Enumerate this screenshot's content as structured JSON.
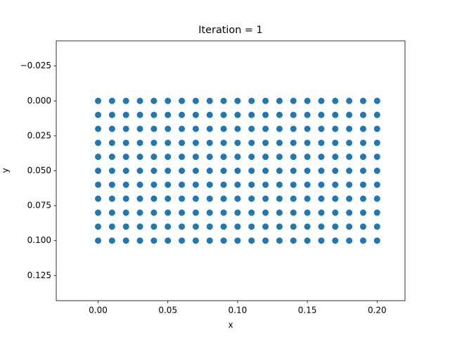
{
  "chart_data": {
    "type": "scatter",
    "title": "Iteration = 1",
    "x_label": "x",
    "y_label": "y",
    "color": "#1f77b4",
    "xlim": [
      -0.03,
      0.22
    ],
    "ylim": [
      -0.043,
      0.143
    ],
    "y_inverted": true,
    "grid": false,
    "xticks": [
      {
        "value": 0,
        "label": "0.00"
      },
      {
        "value": 0.05,
        "label": "0.05"
      },
      {
        "value": 0.1,
        "label": "0.10"
      },
      {
        "value": 0.15,
        "label": "0.15"
      },
      {
        "value": 0.2,
        "label": "0.20"
      }
    ],
    "yticks": [
      {
        "value": -0.025,
        "label": "−0.025"
      },
      {
        "value": 0,
        "label": "0.000"
      },
      {
        "value": 0.025,
        "label": "0.025"
      },
      {
        "value": 0.05,
        "label": "0.050"
      },
      {
        "value": 0.075,
        "label": "0.075"
      },
      {
        "value": 0.1,
        "label": "0.100"
      },
      {
        "value": 0.125,
        "label": "0.125"
      }
    ],
    "x": [
      0,
      0.01,
      0.02,
      0.03,
      0.04,
      0.05,
      0.06,
      0.07,
      0.08,
      0.09,
      0.1,
      0.11,
      0.12,
      0.13,
      0.14,
      0.15,
      0.16,
      0.17,
      0.18,
      0.19,
      0.2,
      0,
      0.01,
      0.02,
      0.03,
      0.04,
      0.05,
      0.06,
      0.07,
      0.08,
      0.09,
      0.1,
      0.11,
      0.12,
      0.13,
      0.14,
      0.15,
      0.16,
      0.17,
      0.18,
      0.19,
      0.2,
      0,
      0.01,
      0.02,
      0.03,
      0.04,
      0.05,
      0.06,
      0.07,
      0.08,
      0.09,
      0.1,
      0.11,
      0.12,
      0.13,
      0.14,
      0.15,
      0.16,
      0.17,
      0.18,
      0.19,
      0.2,
      0,
      0.01,
      0.02,
      0.03,
      0.04,
      0.05,
      0.06,
      0.07,
      0.08,
      0.09,
      0.1,
      0.11,
      0.12,
      0.13,
      0.14,
      0.15,
      0.16,
      0.17,
      0.18,
      0.19,
      0.2,
      0,
      0.01,
      0.02,
      0.03,
      0.04,
      0.05,
      0.06,
      0.07,
      0.08,
      0.09,
      0.1,
      0.11,
      0.12,
      0.13,
      0.14,
      0.15,
      0.16,
      0.17,
      0.18,
      0.19,
      0.2,
      0,
      0.01,
      0.02,
      0.03,
      0.04,
      0.05,
      0.06,
      0.07,
      0.08,
      0.09,
      0.1,
      0.11,
      0.12,
      0.13,
      0.14,
      0.15,
      0.16,
      0.17,
      0.18,
      0.19,
      0.2,
      0,
      0.01,
      0.02,
      0.03,
      0.04,
      0.05,
      0.06,
      0.07,
      0.08,
      0.09,
      0.1,
      0.11,
      0.12,
      0.13,
      0.14,
      0.15,
      0.16,
      0.17,
      0.18,
      0.19,
      0.2,
      0,
      0.01,
      0.02,
      0.03,
      0.04,
      0.05,
      0.06,
      0.07,
      0.08,
      0.09,
      0.1,
      0.11,
      0.12,
      0.13,
      0.14,
      0.15,
      0.16,
      0.17,
      0.18,
      0.19,
      0.2,
      0,
      0.01,
      0.02,
      0.03,
      0.04,
      0.05,
      0.06,
      0.07,
      0.08,
      0.09,
      0.1,
      0.11,
      0.12,
      0.13,
      0.14,
      0.15,
      0.16,
      0.17,
      0.18,
      0.19,
      0.2,
      0,
      0.01,
      0.02,
      0.03,
      0.04,
      0.05,
      0.06,
      0.07,
      0.08,
      0.09,
      0.1,
      0.11,
      0.12,
      0.13,
      0.14,
      0.15,
      0.16,
      0.17,
      0.18,
      0.19,
      0.2,
      0,
      0.01,
      0.02,
      0.03,
      0.04,
      0.05,
      0.06,
      0.07,
      0.08,
      0.09,
      0.1,
      0.11,
      0.12,
      0.13,
      0.14,
      0.15,
      0.16,
      0.17,
      0.18,
      0.19,
      0.2
    ],
    "values": [
      0,
      0,
      0,
      0,
      0,
      0,
      0,
      0,
      0,
      0,
      0,
      0,
      0,
      0,
      0,
      0,
      0,
      0,
      0,
      0,
      0,
      0.01,
      0.01,
      0.01,
      0.01,
      0.01,
      0.01,
      0.01,
      0.01,
      0.01,
      0.01,
      0.01,
      0.01,
      0.01,
      0.01,
      0.01,
      0.01,
      0.01,
      0.01,
      0.01,
      0.01,
      0.01,
      0.02,
      0.02,
      0.02,
      0.02,
      0.02,
      0.02,
      0.02,
      0.02,
      0.02,
      0.02,
      0.02,
      0.02,
      0.02,
      0.02,
      0.02,
      0.02,
      0.02,
      0.02,
      0.02,
      0.02,
      0.02,
      0.03,
      0.03,
      0.03,
      0.03,
      0.03,
      0.03,
      0.03,
      0.03,
      0.03,
      0.03,
      0.03,
      0.03,
      0.03,
      0.03,
      0.03,
      0.03,
      0.03,
      0.03,
      0.03,
      0.03,
      0.03,
      0.04,
      0.04,
      0.04,
      0.04,
      0.04,
      0.04,
      0.04,
      0.04,
      0.04,
      0.04,
      0.04,
      0.04,
      0.04,
      0.04,
      0.04,
      0.04,
      0.04,
      0.04,
      0.04,
      0.04,
      0.04,
      0.05,
      0.05,
      0.05,
      0.05,
      0.05,
      0.05,
      0.05,
      0.05,
      0.05,
      0.05,
      0.05,
      0.05,
      0.05,
      0.05,
      0.05,
      0.05,
      0.05,
      0.05,
      0.05,
      0.05,
      0.05,
      0.06,
      0.06,
      0.06,
      0.06,
      0.06,
      0.06,
      0.06,
      0.06,
      0.06,
      0.06,
      0.06,
      0.06,
      0.06,
      0.06,
      0.06,
      0.06,
      0.06,
      0.06,
      0.06,
      0.06,
      0.06,
      0.07,
      0.07,
      0.07,
      0.07,
      0.07,
      0.07,
      0.07,
      0.07,
      0.07,
      0.07,
      0.07,
      0.07,
      0.07,
      0.07,
      0.07,
      0.07,
      0.07,
      0.07,
      0.07,
      0.07,
      0.07,
      0.08,
      0.08,
      0.08,
      0.08,
      0.08,
      0.08,
      0.08,
      0.08,
      0.08,
      0.08,
      0.08,
      0.08,
      0.08,
      0.08,
      0.08,
      0.08,
      0.08,
      0.08,
      0.08,
      0.08,
      0.08,
      0.09,
      0.09,
      0.09,
      0.09,
      0.09,
      0.09,
      0.09,
      0.09,
      0.09,
      0.09,
      0.09,
      0.09,
      0.09,
      0.09,
      0.09,
      0.09,
      0.09,
      0.09,
      0.09,
      0.09,
      0.09,
      0.1,
      0.1,
      0.1,
      0.1,
      0.1,
      0.1,
      0.1,
      0.1,
      0.1,
      0.1,
      0.1,
      0.1,
      0.1,
      0.1,
      0.1,
      0.1,
      0.1,
      0.1,
      0.1,
      0.1,
      0.1
    ]
  }
}
